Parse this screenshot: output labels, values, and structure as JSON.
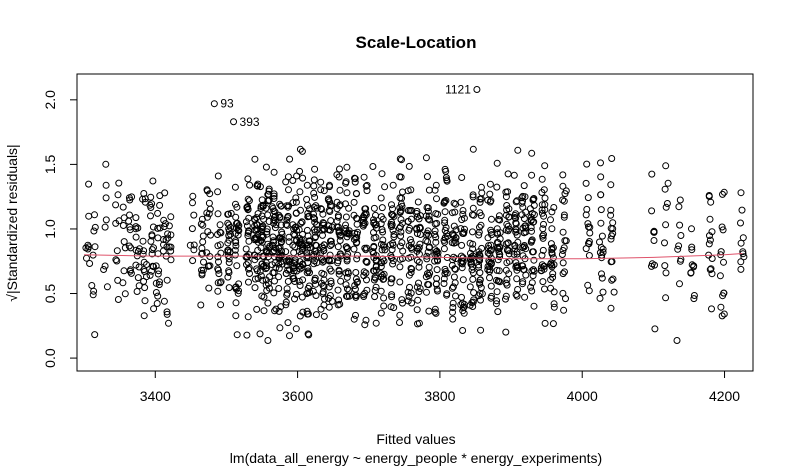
{
  "chart_data": {
    "type": "scatter",
    "title": "Scale-Location",
    "xlabel": "Fitted values",
    "xlabel2": "lm(data_all_energy ~ energy_people * energy_experiments)",
    "ylabel": "√|Standardized residuals|",
    "xlim": [
      3290,
      4240
    ],
    "ylim": [
      -0.1,
      2.2
    ],
    "xticks": [
      "3400",
      "3600",
      "3800",
      "4000",
      "4200"
    ],
    "xtick_values": [
      3400,
      3600,
      3800,
      4000,
      4200
    ],
    "yticks": [
      "0.0",
      "0.5",
      "1.0",
      "1.5",
      "2.0"
    ],
    "ytick_values": [
      0.0,
      0.5,
      1.0,
      1.5,
      2.0
    ],
    "grid": false,
    "smooth_color": "#DF536B",
    "point_color": "#000000",
    "smooth_line": {
      "x": [
        3300,
        3400,
        3500,
        3600,
        3700,
        3800,
        3900,
        4000,
        4100,
        4200,
        4225
      ],
      "y": [
        0.8,
        0.79,
        0.79,
        0.79,
        0.79,
        0.78,
        0.77,
        0.77,
        0.78,
        0.8,
        0.81
      ]
    },
    "annotations": [
      {
        "label": "1121",
        "x": 3852,
        "y": 2.08,
        "side": "left"
      },
      {
        "label": "93",
        "x": 3483,
        "y": 1.97,
        "side": "right"
      },
      {
        "label": "393",
        "x": 3510,
        "y": 1.83,
        "side": "right"
      }
    ],
    "point_columns": {
      "note_hidden": true,
      "x": [
        3305,
        3313,
        3330,
        3347,
        3357,
        3364,
        3375,
        3385,
        3395,
        3404,
        3414,
        3420,
        3452,
        3465,
        3475,
        3490,
        3504,
        3515,
        3530,
        3542,
        3550,
        3558,
        3567,
        3576,
        3586,
        3596,
        3605,
        3615,
        3625,
        3635,
        3646,
        3658,
        3670,
        3682,
        3695,
        3708,
        3720,
        3733,
        3745,
        3758,
        3770,
        3783,
        3795,
        3808,
        3820,
        3832,
        3845,
        3857,
        3870,
        3882,
        3895,
        3907,
        3918,
        3930,
        3945,
        3958,
        3975,
        4008,
        4027,
        4042,
        4100,
        4118,
        4136,
        4155,
        4180,
        4197,
        4225
      ],
      "n": [
        8,
        9,
        8,
        10,
        8,
        12,
        14,
        16,
        18,
        16,
        14,
        10,
        8,
        14,
        16,
        20,
        24,
        28,
        30,
        32,
        34,
        34,
        34,
        34,
        34,
        34,
        36,
        36,
        36,
        36,
        34,
        34,
        34,
        32,
        32,
        32,
        30,
        30,
        30,
        30,
        30,
        30,
        30,
        30,
        30,
        30,
        30,
        32,
        32,
        32,
        32,
        32,
        32,
        30,
        28,
        24,
        20,
        16,
        18,
        16,
        10,
        10,
        10,
        10,
        14,
        14,
        10
      ],
      "seed": 17
    }
  }
}
